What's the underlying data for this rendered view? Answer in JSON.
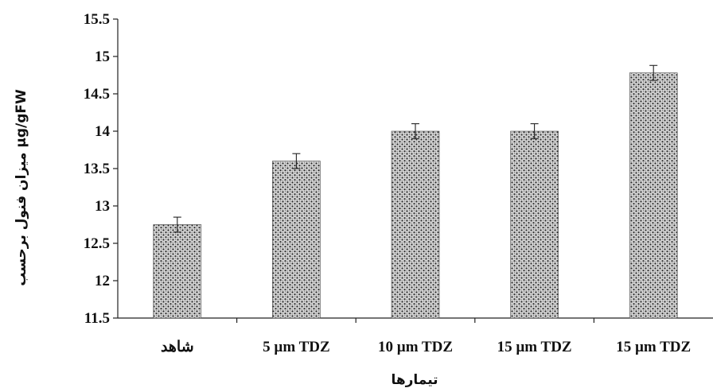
{
  "chart_data": {
    "type": "bar",
    "categories": [
      "شاهد",
      "5 µm TDZ",
      "10 µm TDZ",
      "15 µm TDZ",
      "15 µm TDZ"
    ],
    "values": [
      12.75,
      13.6,
      14.0,
      14.0,
      14.78
    ],
    "error": [
      0.1,
      0.1,
      0.1,
      0.1,
      0.1
    ],
    "xlabel": "تیمارها",
    "ylabel": "میزان فنول برحسب µg/gFW",
    "ylim": [
      11.5,
      15.5
    ],
    "yticks": [
      11.5,
      12,
      12.5,
      13,
      13.5,
      14,
      14.5,
      15,
      15.5
    ],
    "grid": false,
    "bar_pattern": "dotted-stipple"
  }
}
